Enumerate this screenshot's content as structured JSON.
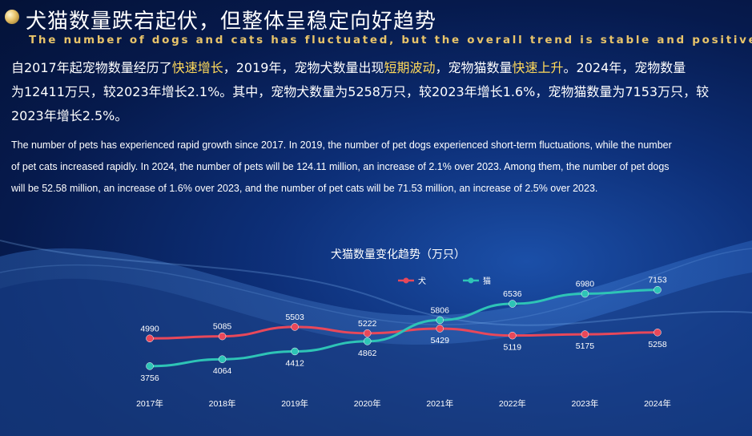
{
  "header": {
    "title_zh": "犬猫数量跌宕起伏，但整体呈稳定向好趋势",
    "title_en": "The number of dogs and cats has fluctuated, but the overall trend is stable and positive"
  },
  "body_zh": [
    [
      {
        "t": "自2017年起宠物数量经历了",
        "hl": false
      },
      {
        "t": "快速增长",
        "hl": true
      },
      {
        "t": "，2019年，宠物犬数量出现",
        "hl": false
      },
      {
        "t": "短期波动",
        "hl": true
      },
      {
        "t": "，宠物猫数量",
        "hl": false
      },
      {
        "t": "快速上升",
        "hl": true
      },
      {
        "t": "。2024年，宠物数量",
        "hl": false
      }
    ],
    [
      {
        "t": "为12411万只，较2023年增长2.1%。其中，宠物犬数量为5258万只，较2023年增长1.6%，宠物猫数量为7153万只，较",
        "hl": false
      }
    ],
    [
      {
        "t": "2023年增长2.5%。",
        "hl": false
      }
    ]
  ],
  "body_en": [
    "The number of pets has experienced rapid growth since 2017. In 2019, the number of pet dogs experienced short-term fluctuations, while the number",
    "of pet cats increased rapidly. In 2024, the number of pets will be 124.11 million, an increase of 2.1% over 2023. Among them, the number of pet dogs",
    "will be 52.58 million, an increase of 1.6% over 2023, and the number of pet cats will be 71.53 million, an increase of 2.5% over 2023."
  ],
  "chart_data": {
    "type": "line",
    "title": "犬猫数量变化趋势（万只）",
    "x": [
      "2017年",
      "2018年",
      "2019年",
      "2020年",
      "2021年",
      "2022年",
      "2023年",
      "2024年"
    ],
    "ylim": [
      3000,
      7500
    ],
    "legend": "top-center",
    "grid": false,
    "series": [
      {
        "name": "犬",
        "color": "#e8485a",
        "values": [
          4990,
          5085,
          5503,
          5222,
          5429,
          5119,
          5175,
          5258
        ]
      },
      {
        "name": "猫",
        "color": "#2ec4b6",
        "values": [
          3756,
          4064,
          4412,
          4862,
          5806,
          6536,
          6980,
          7153
        ]
      }
    ]
  }
}
